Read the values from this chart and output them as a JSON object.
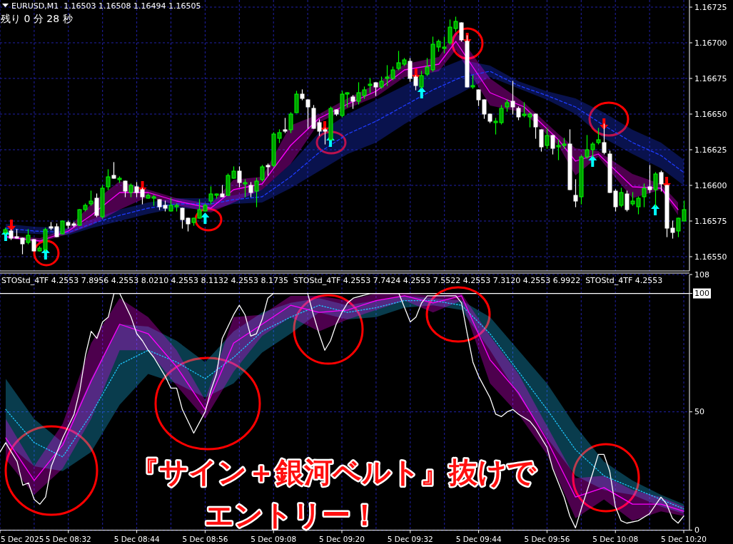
{
  "chart_data": [
    {
      "type": "candlestick",
      "title": "EURUSD,M1  1.16503 1.16508 1.16494 1.16505",
      "subtitle": "残り 0 分 28 秒",
      "x": [
        "2025-12-05T08:21",
        "2025-12-05T08:22",
        "2025-12-05T08:23",
        "2025-12-05T08:24",
        "2025-12-05T08:25",
        "2025-12-05T08:26",
        "2025-12-05T08:27",
        "2025-12-05T08:28",
        "2025-12-05T08:29",
        "2025-12-05T08:30",
        "2025-12-05T08:31",
        "2025-12-05T08:32",
        "2025-12-05T08:33",
        "2025-12-05T08:34",
        "2025-12-05T08:35",
        "2025-12-05T08:36",
        "2025-12-05T08:37",
        "2025-12-05T08:38",
        "2025-12-05T08:39",
        "2025-12-05T08:40",
        "2025-12-05T08:41",
        "2025-12-05T08:42",
        "2025-12-05T08:43",
        "2025-12-05T08:44",
        "2025-12-05T08:45",
        "2025-12-05T08:46",
        "2025-12-05T08:47",
        "2025-12-05T08:48",
        "2025-12-05T08:49",
        "2025-12-05T08:50",
        "2025-12-05T08:51",
        "2025-12-05T08:52",
        "2025-12-05T08:53",
        "2025-12-05T08:54",
        "2025-12-05T08:55",
        "2025-12-05T08:56",
        "2025-12-05T08:57",
        "2025-12-05T08:58",
        "2025-12-05T08:59",
        "2025-12-05T09:00",
        "2025-12-05T09:01",
        "2025-12-05T09:02",
        "2025-12-05T09:03",
        "2025-12-05T09:04",
        "2025-12-05T09:05",
        "2025-12-05T09:06",
        "2025-12-05T09:07",
        "2025-12-05T09:08",
        "2025-12-05T09:09",
        "2025-12-05T09:10",
        "2025-12-05T09:11",
        "2025-12-05T09:12",
        "2025-12-05T09:13",
        "2025-12-05T09:14",
        "2025-12-05T09:15",
        "2025-12-05T09:16",
        "2025-12-05T09:17",
        "2025-12-05T09:18",
        "2025-12-05T09:19",
        "2025-12-05T09:20",
        "2025-12-05T09:21",
        "2025-12-05T09:22",
        "2025-12-05T09:23",
        "2025-12-05T09:24",
        "2025-12-05T09:25",
        "2025-12-05T09:26",
        "2025-12-05T09:27",
        "2025-12-05T09:28",
        "2025-12-05T09:29",
        "2025-12-05T09:30",
        "2025-12-05T09:31",
        "2025-12-05T09:32",
        "2025-12-05T09:33",
        "2025-12-05T09:34",
        "2025-12-05T09:35",
        "2025-12-05T09:36",
        "2025-12-05T09:37",
        "2025-12-05T09:38",
        "2025-12-05T09:39",
        "2025-12-05T09:40",
        "2025-12-05T09:41",
        "2025-12-05T09:42",
        "2025-12-05T09:43",
        "2025-12-05T09:44",
        "2025-12-05T09:45",
        "2025-12-05T09:46",
        "2025-12-05T09:47",
        "2025-12-05T09:48",
        "2025-12-05T09:49",
        "2025-12-05T09:50",
        "2025-12-05T09:51",
        "2025-12-05T09:52",
        "2025-12-05T09:53",
        "2025-12-05T09:54",
        "2025-12-05T09:55",
        "2025-12-05T09:56",
        "2025-12-05T09:57",
        "2025-12-05T09:58",
        "2025-12-05T09:59",
        "2025-12-05T10:00",
        "2025-12-05T10:01",
        "2025-12-05T10:02",
        "2025-12-05T10:03",
        "2025-12-05T10:04",
        "2025-12-05T10:05",
        "2025-12-05T10:06",
        "2025-12-05T10:07",
        "2025-12-05T10:08",
        "2025-12-05T10:09",
        "2025-12-05T10:10",
        "2025-12-05T10:11",
        "2025-12-05T10:12",
        "2025-12-05T10:13",
        "2025-12-05T10:14",
        "2025-12-05T10:15",
        "2025-12-05T10:16",
        "2025-12-05T10:17",
        "2025-12-05T10:18",
        "2025-12-05T10:19",
        "2025-12-05T10:20"
      ],
      "ohlc": [
        [
          1.16567,
          1.1657,
          1.16566,
          1.16569
        ],
        [
          1.16568,
          1.16569,
          1.16562,
          1.16563
        ],
        [
          1.16564,
          1.16569,
          1.16563,
          1.16563
        ],
        [
          1.16563,
          1.16563,
          1.16552,
          1.16559
        ],
        [
          1.1656,
          1.16569,
          1.16559,
          1.16565
        ],
        [
          1.16562,
          1.16562,
          1.16554,
          1.16554
        ],
        [
          1.16554,
          1.16557,
          1.16554,
          1.16556
        ],
        [
          1.16555,
          1.1657,
          1.16554,
          1.16569
        ],
        [
          1.16571,
          1.16574,
          1.16569,
          1.1657
        ],
        [
          1.16571,
          1.16573,
          1.16564,
          1.16564
        ],
        [
          1.16566,
          1.16575,
          1.16566,
          1.16575
        ],
        [
          1.16574,
          1.16575,
          1.1657,
          1.16572
        ],
        [
          1.16573,
          1.16574,
          1.16571,
          1.16572
        ],
        [
          1.16572,
          1.16583,
          1.16572,
          1.16583
        ],
        [
          1.16583,
          1.16587,
          1.16582,
          1.16586
        ],
        [
          1.16587,
          1.16596,
          1.16586,
          1.16589
        ],
        [
          1.16591,
          1.16594,
          1.16578,
          1.16579
        ],
        [
          1.16578,
          1.166,
          1.16577,
          1.16598
        ],
        [
          1.16599,
          1.16611,
          1.16597,
          1.16606
        ],
        [
          1.16607,
          1.16616,
          1.16605,
          1.16605
        ],
        [
          1.16604,
          1.16606,
          1.16602,
          1.16605
        ],
        [
          1.16603,
          1.16603,
          1.16592,
          1.16596
        ],
        [
          1.16595,
          1.16601,
          1.16592,
          1.166
        ],
        [
          1.16599,
          1.16602,
          1.16592,
          1.16595
        ],
        [
          1.16597,
          1.16598,
          1.16587,
          1.16592
        ],
        [
          1.16591,
          1.16594,
          1.16591,
          1.16593
        ],
        [
          1.16591,
          1.16593,
          1.16586,
          1.16592
        ],
        [
          1.1659,
          1.1659,
          1.16583,
          1.16585
        ],
        [
          1.16586,
          1.16589,
          1.16582,
          1.16584
        ],
        [
          1.16582,
          1.16591,
          1.16582,
          1.16586
        ],
        [
          1.16585,
          1.16587,
          1.16582,
          1.16586
        ],
        [
          1.16584,
          1.16584,
          1.1657,
          1.16576
        ],
        [
          1.16577,
          1.16577,
          1.16568,
          1.16573
        ],
        [
          1.16574,
          1.16577,
          1.16572,
          1.16577
        ],
        [
          1.16577,
          1.1659,
          1.16577,
          1.16583
        ],
        [
          1.16582,
          1.16587,
          1.16582,
          1.16586
        ],
        [
          1.16589,
          1.16599,
          1.16587,
          1.16594
        ],
        [
          1.16593,
          1.16594,
          1.16591,
          1.16594
        ],
        [
          1.16594,
          1.166,
          1.16592,
          1.16592
        ],
        [
          1.16593,
          1.16608,
          1.16593,
          1.16607
        ],
        [
          1.16605,
          1.16613,
          1.16605,
          1.1661
        ],
        [
          1.1661,
          1.16613,
          1.16599,
          1.16602
        ],
        [
          1.16601,
          1.16604,
          1.16592,
          1.16602
        ],
        [
          1.166,
          1.16602,
          1.16592,
          1.16595
        ],
        [
          1.16596,
          1.16605,
          1.16585,
          1.16603
        ],
        [
          1.16604,
          1.16614,
          1.16603,
          1.16613
        ],
        [
          1.16614,
          1.16615,
          1.16607,
          1.16613
        ],
        [
          1.16614,
          1.16637,
          1.16613,
          1.16636
        ],
        [
          1.16633,
          1.16639,
          1.1663,
          1.16637
        ],
        [
          1.16639,
          1.16647,
          1.16637,
          1.16638
        ],
        [
          1.16639,
          1.16651,
          1.16637,
          1.1665
        ],
        [
          1.16651,
          1.16666,
          1.16651,
          1.16664
        ],
        [
          1.16664,
          1.16667,
          1.1666,
          1.16661
        ],
        [
          1.1666,
          1.1666,
          1.1664,
          1.16655
        ],
        [
          1.16654,
          1.16656,
          1.1664,
          1.1664
        ],
        [
          1.16644,
          1.16646,
          1.16635,
          1.16638
        ],
        [
          1.16639,
          1.1664,
          1.16629,
          1.16638
        ],
        [
          1.16632,
          1.16655,
          1.16632,
          1.16654
        ],
        [
          1.16653,
          1.16653,
          1.16649,
          1.1665
        ],
        [
          1.16649,
          1.16666,
          1.16648,
          1.16664
        ],
        [
          1.16664,
          1.16665,
          1.16655,
          1.16665
        ],
        [
          1.16662,
          1.16663,
          1.16654,
          1.16659
        ],
        [
          1.16659,
          1.16672,
          1.16657,
          1.16665
        ],
        [
          1.16663,
          1.16669,
          1.16661,
          1.16667
        ],
        [
          1.1667,
          1.16675,
          1.16665,
          1.16671
        ],
        [
          1.16672,
          1.16672,
          1.16663,
          1.16669
        ],
        [
          1.16669,
          1.16676,
          1.16668,
          1.16673
        ],
        [
          1.16675,
          1.16684,
          1.1667,
          1.16676
        ],
        [
          1.16675,
          1.16683,
          1.16674,
          1.16681
        ],
        [
          1.16682,
          1.16694,
          1.16681,
          1.16686
        ],
        [
          1.16685,
          1.16689,
          1.16684,
          1.16688
        ],
        [
          1.16687,
          1.16689,
          1.16673,
          1.16675
        ],
        [
          1.16676,
          1.16677,
          1.16667,
          1.1667
        ],
        [
          1.16669,
          1.1668,
          1.16668,
          1.16677
        ],
        [
          1.16678,
          1.16689,
          1.16677,
          1.16683
        ],
        [
          1.16681,
          1.16704,
          1.1668,
          1.16699
        ],
        [
          1.16697,
          1.16702,
          1.16694,
          1.16701
        ],
        [
          1.16696,
          1.16704,
          1.16693,
          1.16697
        ],
        [
          1.167,
          1.16716,
          1.16699,
          1.16711
        ],
        [
          1.1671,
          1.16718,
          1.16708,
          1.16715
        ],
        [
          1.16714,
          1.16714,
          1.16701,
          1.16702
        ],
        [
          1.16701,
          1.16705,
          1.16669,
          1.16669
        ],
        [
          1.16669,
          1.16677,
          1.16668,
          1.1667
        ],
        [
          1.16667,
          1.16667,
          1.16656,
          1.1666
        ],
        [
          1.1666,
          1.1666,
          1.16647,
          1.1665
        ],
        [
          1.1665,
          1.1665,
          1.16644,
          1.16645
        ],
        [
          1.16644,
          1.16647,
          1.16636,
          1.16645
        ],
        [
          1.16644,
          1.16656,
          1.16643,
          1.16654
        ],
        [
          1.16655,
          1.1666,
          1.16652,
          1.16658
        ],
        [
          1.16659,
          1.16673,
          1.1665,
          1.16655
        ],
        [
          1.16654,
          1.16655,
          1.16646,
          1.16648
        ],
        [
          1.16649,
          1.16658,
          1.16648,
          1.1665
        ],
        [
          1.16648,
          1.16651,
          1.16641,
          1.1665
        ],
        [
          1.1665,
          1.1665,
          1.16633,
          1.16641
        ],
        [
          1.16639,
          1.16639,
          1.16624,
          1.16627
        ],
        [
          1.16628,
          1.1664,
          1.16626,
          1.16635
        ],
        [
          1.16635,
          1.16635,
          1.16622,
          1.16626
        ],
        [
          1.16627,
          1.16632,
          1.16618,
          1.16628
        ],
        [
          1.16628,
          1.16633,
          1.16626,
          1.16629
        ],
        [
          1.16629,
          1.16639,
          1.16597,
          1.16597
        ],
        [
          1.16593,
          1.16604,
          1.16585,
          1.16589
        ],
        [
          1.16592,
          1.16621,
          1.16587,
          1.1662
        ],
        [
          1.1662,
          1.16635,
          1.16619,
          1.16625
        ],
        [
          1.16625,
          1.1663,
          1.1662,
          1.16629
        ],
        [
          1.1663,
          1.1664,
          1.16629,
          1.16632
        ],
        [
          1.1663,
          1.16643,
          1.16622,
          1.16623
        ],
        [
          1.16622,
          1.16624,
          1.16595,
          1.16595
        ],
        [
          1.16596,
          1.16597,
          1.16582,
          1.16585
        ],
        [
          1.16586,
          1.16598,
          1.16585,
          1.16595
        ],
        [
          1.16594,
          1.16596,
          1.16582,
          1.16583
        ],
        [
          1.16587,
          1.16595,
          1.16586,
          1.16589
        ],
        [
          1.16585,
          1.16592,
          1.1658,
          1.16591
        ],
        [
          1.16592,
          1.16601,
          1.16585,
          1.16598
        ],
        [
          1.16599,
          1.16614,
          1.16595,
          1.16597
        ],
        [
          1.16597,
          1.16609,
          1.16585,
          1.16608
        ],
        [
          1.16609,
          1.1661,
          1.16596,
          1.16601
        ],
        [
          1.166,
          1.166,
          1.16564,
          1.1657
        ],
        [
          1.1657,
          1.16575,
          1.16563,
          1.16567
        ],
        [
          1.16568,
          1.16577,
          1.16564,
          1.16577
        ],
        [
          1.16575,
          1.16589,
          1.16575,
          1.16583
        ]
      ],
      "series": [
        {
          "type": "line",
          "color": "#1e3cff",
          "line_style": "dashed",
          "x": [
            "2025-12-05T08:21",
            "2025-12-05T08:26",
            "2025-12-05T08:32",
            "2025-12-05T08:36",
            "2025-12-05T08:41",
            "2025-12-05T08:46",
            "2025-12-05T08:51",
            "2025-12-05T08:57",
            "2025-12-05T09:01",
            "2025-12-05T09:06",
            "2025-12-05T09:11",
            "2025-12-05T09:16",
            "2025-12-05T09:21",
            "2025-12-05T09:26",
            "2025-12-05T09:31",
            "2025-12-05T09:36",
            "2025-12-05T09:41",
            "2025-12-05T09:46",
            "2025-12-05T09:51",
            "2025-12-05T09:56",
            "2025-12-05T10:01",
            "2025-12-05T10:06",
            "2025-12-05T10:11",
            "2025-12-05T10:16",
            "2025-12-05T10:20"
          ],
          "values": [
            1.1657,
            1.16568,
            1.16567,
            1.16573,
            1.16579,
            1.16584,
            1.16587,
            1.16587,
            1.1659,
            1.16592,
            1.16606,
            1.16623,
            1.16636,
            1.16645,
            1.16656,
            1.16667,
            1.16676,
            1.1668,
            1.1667,
            1.16663,
            1.16655,
            1.16642,
            1.1663,
            1.16621,
            1.16609
          ],
          "lower": [
            1.16567,
            1.16566,
            1.16565,
            1.1657,
            1.16575,
            1.1658,
            1.16584,
            1.16583,
            1.16587,
            1.16588,
            1.16598,
            1.1661,
            1.16622,
            1.1663,
            1.16643,
            1.16655,
            1.16665,
            1.16676,
            1.16668,
            1.1666,
            1.1665,
            1.16633,
            1.16622,
            1.16612,
            1.166
          ],
          "upper": [
            1.16573,
            1.16571,
            1.1657,
            1.16576,
            1.16583,
            1.16588,
            1.16591,
            1.16591,
            1.16593,
            1.16597,
            1.16615,
            1.16637,
            1.1665,
            1.1666,
            1.1667,
            1.1668,
            1.16688,
            1.16684,
            1.16673,
            1.16666,
            1.16661,
            1.16651,
            1.16639,
            1.1663,
            1.16618
          ]
        },
        {
          "type": "line",
          "color": "#ff00ff",
          "x": [
            "2025-12-05T08:21",
            "2025-12-05T08:27",
            "2025-12-05T08:32",
            "2025-12-05T08:36",
            "2025-12-05T08:41",
            "2025-12-05T08:46",
            "2025-12-05T08:51",
            "2025-12-05T08:57",
            "2025-12-05T09:01",
            "2025-12-05T09:06",
            "2025-12-05T09:11",
            "2025-12-05T09:16",
            "2025-12-05T09:21",
            "2025-12-05T09:26",
            "2025-12-05T09:31",
            "2025-12-05T09:37",
            "2025-12-05T09:40",
            "2025-12-05T09:46",
            "2025-12-05T09:52",
            "2025-12-05T09:58",
            "2025-12-05T10:01",
            "2025-12-05T10:05",
            "2025-12-05T10:11",
            "2025-12-05T10:16",
            "2025-12-05T10:19"
          ],
          "values": [
            1.16564,
            1.16561,
            1.16568,
            1.16579,
            1.16595,
            1.16595,
            1.16589,
            1.16584,
            1.16597,
            1.16601,
            1.16628,
            1.16647,
            1.16657,
            1.16666,
            1.16681,
            1.16685,
            1.16701,
            1.16665,
            1.16655,
            1.16632,
            1.16617,
            1.16622,
            1.16599,
            1.16598,
            1.16583
          ],
          "lower": [
            1.16563,
            1.1656,
            1.16566,
            1.16572,
            1.16583,
            1.16592,
            1.16586,
            1.16581,
            1.16588,
            1.16597,
            1.16615,
            1.16644,
            1.16654,
            1.16662,
            1.16676,
            1.1668,
            1.16695,
            1.16656,
            1.16651,
            1.16628,
            1.16607,
            1.1662,
            1.16591,
            1.16597,
            1.16579
          ],
          "upper": [
            1.16565,
            1.16563,
            1.1657,
            1.16587,
            1.16603,
            1.16597,
            1.16591,
            1.16587,
            1.16604,
            1.16606,
            1.16642,
            1.1665,
            1.16661,
            1.16671,
            1.16685,
            1.1669,
            1.16708,
            1.16675,
            1.16658,
            1.16636,
            1.16626,
            1.16624,
            1.16608,
            1.16601,
            1.16588
          ]
        },
        {
          "type": "scatter",
          "color": "#00ffff",
          "marker": "triangle",
          "x": [
            "2025-12-05T08:21",
            "2025-12-05T08:28",
            "2025-12-05T08:56",
            "2025-12-05T09:18",
            "2025-12-05T09:34",
            "2025-12-05T10:04",
            "2025-12-05T10:15"
          ],
          "values": [
            1.16565,
            1.16552,
            1.16577,
            1.16631,
            1.16665,
            1.16617,
            1.16583
          ]
        },
        {
          "type": "scatter",
          "color": "#ff0000",
          "marker": "triangle-down",
          "x": [
            "2025-12-05T08:22",
            "2025-12-05T08:45",
            "2025-12-05T09:17",
            "2025-12-05T09:33",
            "2025-12-05T09:42",
            "2025-12-05T10:06",
            "2025-12-05T10:17"
          ],
          "values": [
            1.16572,
            1.16599,
            1.16641,
            1.16678,
            1.16703,
            1.16643,
            1.16602
          ]
        }
      ],
      "xlim": [
        "2025-12-05T08:20",
        "2025-12-05T10:21"
      ],
      "xticks": [
        {
          "value": "2025-12-05T08:20",
          "label": null
        },
        {
          "value": "2025-12-05T08:26",
          "label": null
        },
        {
          "value": "2025-12-05T08:32",
          "label": null
        },
        {
          "value": "2025-12-05T08:38",
          "label": null
        },
        {
          "value": "2025-12-05T08:44",
          "label": null
        },
        {
          "value": "2025-12-05T08:50",
          "label": null
        },
        {
          "value": "2025-12-05T08:56",
          "label": null
        },
        {
          "value": "2025-12-05T09:02",
          "label": null
        },
        {
          "value": "2025-12-05T09:08",
          "label": null
        },
        {
          "value": "2025-12-05T09:14",
          "label": null
        },
        {
          "value": "2025-12-05T09:20",
          "label": null
        },
        {
          "value": "2025-12-05T09:26",
          "label": null
        },
        {
          "value": "2025-12-05T09:32",
          "label": null
        },
        {
          "value": "2025-12-05T09:38",
          "label": null
        },
        {
          "value": "2025-12-05T09:44",
          "label": null
        },
        {
          "value": "2025-12-05T09:50",
          "label": null
        },
        {
          "value": "2025-12-05T09:56",
          "label": null
        },
        {
          "value": "2025-12-05T10:02",
          "label": null
        },
        {
          "value": "2025-12-05T10:08",
          "label": null
        },
        {
          "value": "2025-12-05T10:14",
          "label": null
        },
        {
          "value": "2025-12-05T10:20",
          "label": null
        }
      ],
      "ylim": [
        1.1654,
        1.1673
      ],
      "yticks": [
        {
          "value": 1.1655,
          "label": "1.16550"
        },
        1.16575,
        {
          "value": 1.166,
          "label": "1.16600"
        },
        1.16625,
        {
          "value": 1.1665,
          "label": "1.16650"
        },
        1.16675,
        {
          "value": 1.167,
          "label": "1.16700"
        },
        1.16725
      ],
      "grid": true,
      "tick_labels": "y"
    },
    {
      "type": "line",
      "title": "STOStd_4TF 4.2553 7.8956 4.2553 8.0210 4.2553 8.1132 4.2553 8.1735  STOStd_4TF 4.2553 7.7424 4.2553 7.5522 4.2553 7.3120 4.2553 6.9922  STOStd_4TF 4.2553",
      "series": [
        {
          "color": "#1ec8ff",
          "line_style": "dotted",
          "x": [
            "2025-12-05T08:21",
            "2025-12-05T08:26",
            "2025-12-05T08:31",
            "2025-12-05T08:36",
            "2025-12-05T08:41",
            "2025-12-05T08:46",
            "2025-12-05T08:51",
            "2025-12-05T08:56",
            "2025-12-05T09:01",
            "2025-12-05T09:06",
            "2025-12-05T09:11",
            "2025-12-05T09:16",
            "2025-12-05T09:21",
            "2025-12-05T09:26",
            "2025-12-05T09:31",
            "2025-12-05T09:36",
            "2025-12-05T09:41",
            "2025-12-05T09:46",
            "2025-12-05T09:51",
            "2025-12-05T09:56",
            "2025-12-05T10:01",
            "2025-12-05T10:06",
            "2025-12-05T10:11",
            "2025-12-05T10:16",
            "2025-12-05T10:20"
          ],
          "values": [
            51,
            37,
            31,
            49,
            70,
            76,
            71,
            64,
            73,
            84,
            90,
            95,
            92,
            94,
            97,
            97,
            95,
            83,
            67,
            51,
            34,
            23,
            18,
            13,
            9
          ],
          "lower": [
            37,
            27,
            25,
            33,
            53,
            66,
            62,
            56,
            62,
            75,
            83,
            92,
            89,
            90,
            94,
            95,
            93,
            76,
            57,
            39,
            23,
            17,
            15,
            10,
            7
          ],
          "upper": [
            64,
            47,
            37,
            64,
            87,
            86,
            80,
            71,
            84,
            92,
            96,
            98,
            95,
            97,
            99,
            98,
            97,
            90,
            76,
            62,
            44,
            29,
            21,
            15,
            11
          ]
        },
        {
          "color": "#ff00ff",
          "x": [
            "2025-12-05T08:21",
            "2025-12-05T08:26",
            "2025-12-05T08:31",
            "2025-12-05T08:36",
            "2025-12-05T08:41",
            "2025-12-05T08:46",
            "2025-12-05T08:51",
            "2025-12-05T08:56",
            "2025-12-05T09:01",
            "2025-12-05T09:06",
            "2025-12-05T09:11",
            "2025-12-05T09:16",
            "2025-12-05T09:21",
            "2025-12-05T09:26",
            "2025-12-05T09:31",
            "2025-12-05T09:36",
            "2025-12-05T09:41",
            "2025-12-05T09:46",
            "2025-12-05T09:51",
            "2025-12-05T09:56",
            "2025-12-05T10:01",
            "2025-12-05T10:06",
            "2025-12-05T10:11",
            "2025-12-05T10:16",
            "2025-12-05T10:20"
          ],
          "values": [
            39,
            21,
            36,
            63,
            87,
            83,
            69,
            51,
            79,
            87,
            95,
            92,
            93,
            97,
            99,
            96,
            99,
            72,
            58,
            38,
            14,
            18,
            11,
            11,
            8
          ],
          "lower": [
            30,
            15,
            26,
            47,
            76,
            76,
            61,
            47,
            67,
            82,
            90,
            84,
            89,
            93,
            97,
            92,
            97,
            62,
            49,
            32,
            5,
            13,
            4,
            8,
            6
          ],
          "upper": [
            47,
            27,
            45,
            79,
            98,
            90,
            76,
            55,
            90,
            91,
            99,
            99,
            97,
            100,
            100,
            99,
            100,
            82,
            66,
            44,
            22,
            23,
            17,
            14,
            10
          ]
        },
        {
          "color": "#ffffff",
          "x": [
            "2025-12-05T08:20",
            "2025-12-05T08:21",
            "2025-12-05T08:23",
            "2025-12-05T08:24",
            "2025-12-05T08:25",
            "2025-12-05T08:26",
            "2025-12-05T08:27",
            "2025-12-05T08:28",
            "2025-12-05T08:29",
            "2025-12-05T08:31",
            "2025-12-05T08:33",
            "2025-12-05T08:34",
            "2025-12-05T08:35",
            "2025-12-05T08:36",
            "2025-12-05T08:37",
            "2025-12-05T08:38",
            "2025-12-05T08:39",
            "2025-12-05T08:40",
            "2025-12-05T08:41",
            "2025-12-05T08:43",
            "2025-12-05T08:44",
            "2025-12-05T08:45",
            "2025-12-05T08:46",
            "2025-12-05T08:47",
            "2025-12-05T08:48",
            "2025-12-05T08:49",
            "2025-12-05T08:50",
            "2025-12-05T08:51",
            "2025-12-05T08:52",
            "2025-12-05T08:54",
            "2025-12-05T08:56",
            "2025-12-05T08:57",
            "2025-12-05T08:58",
            "2025-12-05T08:59",
            "2025-12-05T09:01",
            "2025-12-05T09:02",
            "2025-12-05T09:03",
            "2025-12-05T09:04",
            "2025-12-05T09:05",
            "2025-12-05T09:06",
            "2025-12-05T09:07",
            "2025-12-05T09:08",
            "2025-12-05T09:14",
            "2025-12-05T09:15",
            "2025-12-05T09:16",
            "2025-12-05T09:17",
            "2025-12-05T09:18",
            "2025-12-05T09:19",
            "2025-12-05T09:20",
            "2025-12-05T09:21",
            "2025-12-05T09:22",
            "2025-12-05T09:25",
            "2025-12-05T09:30",
            "2025-12-05T09:31",
            "2025-12-05T09:32",
            "2025-12-05T09:33",
            "2025-12-05T09:34",
            "2025-12-05T09:35",
            "2025-12-05T09:40",
            "2025-12-05T09:41",
            "2025-12-05T09:42",
            "2025-12-05T09:43",
            "2025-12-05T09:44",
            "2025-12-05T09:46",
            "2025-12-05T09:47",
            "2025-12-05T09:48",
            "2025-12-05T09:49",
            "2025-12-05T09:50",
            "2025-12-05T09:51",
            "2025-12-05T09:53",
            "2025-12-05T09:54",
            "2025-12-05T09:56",
            "2025-12-05T09:57",
            "2025-12-05T09:59",
            "2025-12-05T10:00",
            "2025-12-05T10:01",
            "2025-12-05T10:02",
            "2025-12-05T10:04",
            "2025-12-05T10:05",
            "2025-12-05T10:06",
            "2025-12-05T10:07",
            "2025-12-05T10:08",
            "2025-12-05T10:09",
            "2025-12-05T10:10",
            "2025-12-05T10:12",
            "2025-12-05T10:14",
            "2025-12-05T10:16",
            "2025-12-05T10:17",
            "2025-12-05T10:18",
            "2025-12-05T10:19",
            "2025-12-05T10:20"
          ],
          "values": [
            33,
            37,
            29,
            19,
            20,
            13,
            11,
            14,
            27,
            39,
            49,
            59,
            74,
            84,
            81,
            88,
            90,
            100,
            100,
            90,
            83,
            80,
            76,
            73,
            69,
            65,
            60,
            60,
            51,
            41,
            50,
            59,
            66,
            81,
            91,
            95,
            91,
            82,
            83,
            89,
            98,
            100,
            100,
            91,
            83,
            76,
            80,
            87,
            92,
            96,
            98,
            100,
            100,
            94,
            88,
            90,
            96,
            99,
            99,
            96,
            83,
            71,
            65,
            56,
            49,
            48,
            50,
            51,
            49,
            46,
            43,
            35,
            26,
            14,
            6,
            1,
            9,
            24,
            32,
            32,
            25,
            10,
            4,
            3,
            4,
            7,
            14,
            11,
            5,
            3,
            6
          ]
        }
      ],
      "xlim": [
        "2025-12-05T08:20",
        "2025-12-05T10:21"
      ],
      "xticks": [
        {
          "value": "2025-12-05T08:20",
          "label": "5 Dec 2025"
        },
        {
          "value": "2025-12-05T08:26",
          "label": null
        },
        {
          "value": "2025-12-05T08:32",
          "label": "5 Dec 08:32"
        },
        {
          "value": "2025-12-05T08:38",
          "label": null
        },
        {
          "value": "2025-12-05T08:44",
          "label": "5 Dec 08:44"
        },
        {
          "value": "2025-12-05T08:50",
          "label": null
        },
        {
          "value": "2025-12-05T08:56",
          "label": "5 Dec 08:56"
        },
        {
          "value": "2025-12-05T09:02",
          "label": null
        },
        {
          "value": "2025-12-05T09:08",
          "label": "5 Dec 09:08"
        },
        {
          "value": "2025-12-05T09:14",
          "label": null
        },
        {
          "value": "2025-12-05T09:20",
          "label": "5 Dec 09:20"
        },
        {
          "value": "2025-12-05T09:26",
          "label": null
        },
        {
          "value": "2025-12-05T09:32",
          "label": "5 Dec 09:32"
        },
        {
          "value": "2025-12-05T09:38",
          "label": null
        },
        {
          "value": "2025-12-05T09:44",
          "label": "5 Dec 09:44"
        },
        {
          "value": "2025-12-05T09:50",
          "label": null
        },
        {
          "value": "2025-12-05T09:56",
          "label": "5 Dec 09:56"
        },
        {
          "value": "2025-12-05T10:02",
          "label": null
        },
        {
          "value": "2025-12-05T10:08",
          "label": "5 Dec 10:08"
        },
        {
          "value": "2025-12-05T10:14",
          "label": null
        },
        {
          "value": "2025-12-05T10:20",
          "label": "5 Dec 10:20"
        }
      ],
      "ylim": [
        0,
        108
      ],
      "yticks": [
        0,
        50,
        100,
        108
      ],
      "grid": true,
      "ref_lines": [
        {
          "axis": "y",
          "value": 100,
          "color": "#ffffff"
        }
      ],
      "annotations": [
        "『サイン＋銀河ベルト』抜けで",
        "エントリー！"
      ]
    }
  ]
}
